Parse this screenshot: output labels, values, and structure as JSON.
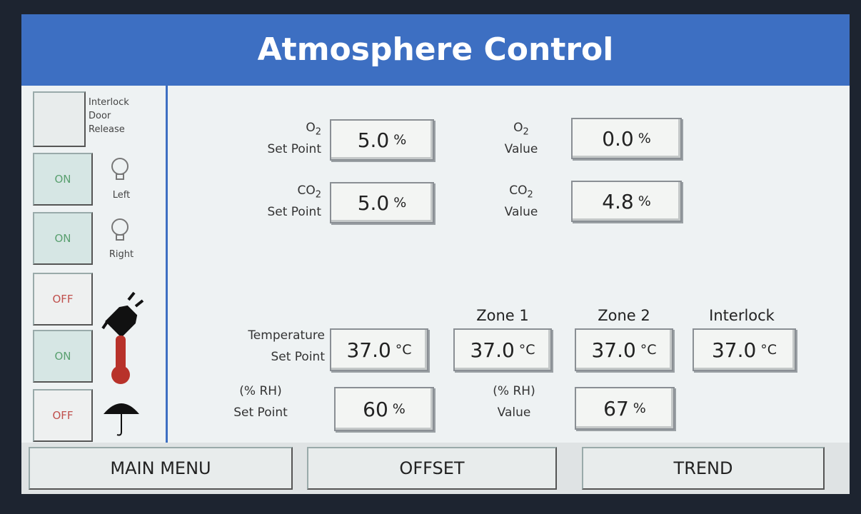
{
  "header": {
    "title": "Atmosphere Control"
  },
  "sidebar": {
    "interlock_label": [
      "Interlock",
      "Door",
      "Release"
    ],
    "toggles": [
      {
        "state": "ON",
        "label": "Left"
      },
      {
        "state": "ON",
        "label": "Right"
      },
      {
        "state": "OFF"
      },
      {
        "state": "ON"
      },
      {
        "state": "OFF"
      }
    ]
  },
  "gas": [
    {
      "symbol": "O",
      "subscript": "2",
      "setpoint_label": "Set Point",
      "setpoint": "5.0",
      "setpoint_unit": "%",
      "value_label": "Value",
      "value": "0.0",
      "value_unit": "%"
    },
    {
      "symbol": "CO",
      "subscript": "2",
      "setpoint_label": "Set Point",
      "setpoint": "5.0",
      "setpoint_unit": "%",
      "value_label": "Value",
      "value": "4.8",
      "value_unit": "%"
    }
  ],
  "temperature": {
    "label": [
      "Temperature",
      "Set Point"
    ],
    "setpoint": "37.0",
    "unit": "°C",
    "zones": [
      {
        "name": "Zone 1",
        "value": "37.0",
        "unit": "°C"
      },
      {
        "name": "Zone 2",
        "value": "37.0",
        "unit": "°C"
      },
      {
        "name": "Interlock",
        "value": "37.0",
        "unit": "°C"
      }
    ]
  },
  "humidity": {
    "setpoint_label": [
      "(% RH)",
      "Set Point"
    ],
    "setpoint": "60",
    "setpoint_unit": "%",
    "value_label": [
      "(% RH)",
      "Value"
    ],
    "value": "67",
    "value_unit": "%"
  },
  "footer": {
    "buttons": [
      "MAIN MENU",
      "OFFSET",
      "TREND"
    ]
  }
}
